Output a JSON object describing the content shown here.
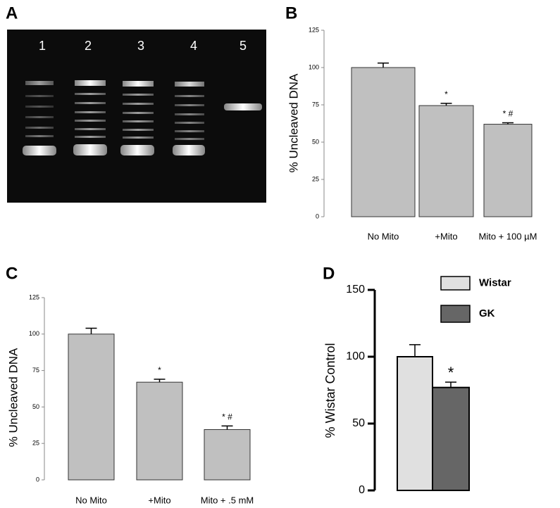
{
  "chart_data": [
    {
      "type": "gel",
      "panel_label": "A",
      "lanes": [
        "1",
        "2",
        "3",
        "4",
        "5"
      ]
    },
    {
      "type": "bar",
      "panel_label": "B",
      "ylabel": "% Uncleaved DNA",
      "categories": [
        "No Mito",
        "+Mito",
        "Mito + 100 µM"
      ],
      "values": [
        100,
        74.5,
        62
      ],
      "errors": [
        3,
        1.5,
        1
      ],
      "annotations": [
        null,
        "*",
        "* #"
      ],
      "color": "#c0c0c0",
      "ylim": [
        0,
        125
      ],
      "yticks": [
        0,
        25,
        50,
        75,
        100,
        125
      ]
    },
    {
      "type": "bar",
      "panel_label": "C",
      "ylabel": "% Uncleaved DNA",
      "categories": [
        "No Mito",
        "+Mito",
        "Mito + .5 mM"
      ],
      "values": [
        100,
        67,
        34.5
      ],
      "errors": [
        4,
        2,
        2.5
      ],
      "annotations": [
        null,
        "*",
        "* #"
      ],
      "color": "#c0c0c0",
      "ylim": [
        0,
        125
      ],
      "yticks": [
        0,
        25,
        50,
        75,
        100,
        125
      ]
    },
    {
      "type": "grouped",
      "panel_label": "D",
      "ylabel": "% Wistar Control",
      "series": [
        {
          "name": "Wistar",
          "color": "#e0e0e0",
          "values": [
            100
          ],
          "errors": [
            9
          ]
        },
        {
          "name": "GK",
          "color": "#666666",
          "values": [
            77
          ],
          "errors": [
            4
          ],
          "annotations": [
            "*"
          ]
        }
      ],
      "ylim": [
        0,
        150
      ],
      "yticks": [
        0,
        50,
        100,
        150
      ]
    }
  ]
}
